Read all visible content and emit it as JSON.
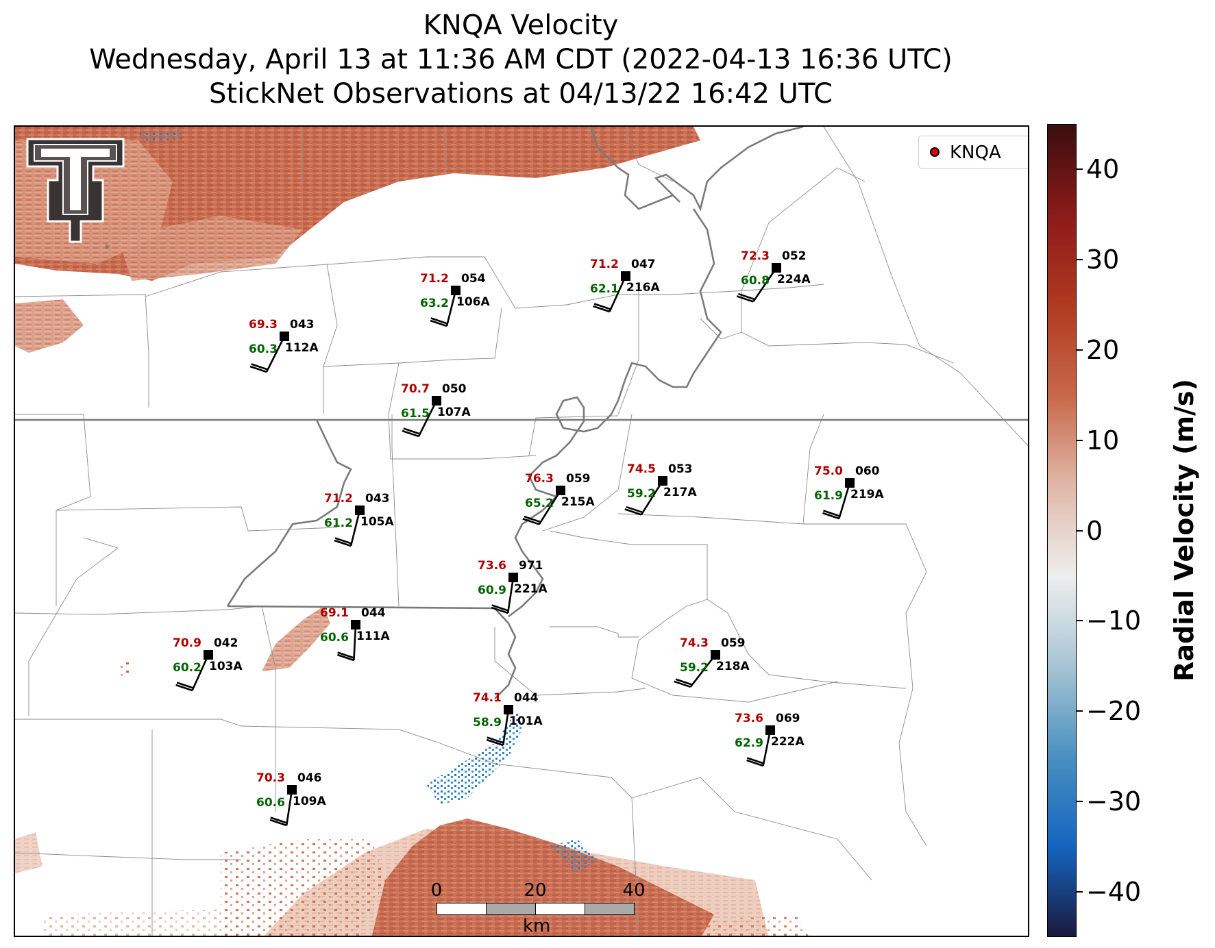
{
  "title": {
    "line1": "KNQA Velocity",
    "line2": "Wednesday, April 13 at 11:36 AM CDT (2022-04-13 16:36 UTC)",
    "line3": "StickNet Observations at 04/13/22 16:42 UTC"
  },
  "legend": {
    "label": "KNQA",
    "marker_color": "#e00000"
  },
  "colorbar": {
    "title": "Radial Velocity (m/s)",
    "ticks": [
      "40",
      "30",
      "20",
      "10",
      "0",
      "−10",
      "−20",
      "−30",
      "−40"
    ],
    "tick_values": [
      40,
      30,
      20,
      10,
      0,
      -10,
      -20,
      -30,
      -40
    ],
    "range": [
      -45,
      45
    ],
    "colors": [
      "#1a1a3e",
      "#1565c0",
      "#4a90c0",
      "#a8c4d4",
      "#eeeeee",
      "#e0b8a8",
      "#c86848",
      "#b03a20",
      "#8b1a1a",
      "#3a0f0f"
    ]
  },
  "scalebar": {
    "ticks": [
      "0",
      "20",
      "40"
    ],
    "unit": "km"
  },
  "logo_icon": "texas-tech-double-t-logo",
  "colors": {
    "temperature": "#b00000",
    "dewpoint": "#006400",
    "station_marker": "#000000"
  },
  "stations": [
    {
      "id": "043",
      "probe": "112A",
      "temp": "69.3",
      "dew": "60.3"
    },
    {
      "id": "054",
      "probe": "106A",
      "temp": "71.2",
      "dew": "63.2"
    },
    {
      "id": "047",
      "probe": "216A",
      "temp": "71.2",
      "dew": "62.1"
    },
    {
      "id": "052",
      "probe": "224A",
      "temp": "72.3",
      "dew": "60.8"
    },
    {
      "id": "050",
      "probe": "107A",
      "temp": "70.7",
      "dew": "61.5"
    },
    {
      "id": "059",
      "probe": "215A",
      "temp": "76.3",
      "dew": "65.2"
    },
    {
      "id": "053",
      "probe": "217A",
      "temp": "74.5",
      "dew": "59.2"
    },
    {
      "id": "060",
      "probe": "219A",
      "temp": "75.0",
      "dew": "61.9"
    },
    {
      "id": "043",
      "probe": "105A",
      "temp": "71.2",
      "dew": "61.2"
    },
    {
      "id": "971",
      "probe": "221A",
      "temp": "73.6",
      "dew": "60.9"
    },
    {
      "id": "044",
      "probe": "111A",
      "temp": "69.1",
      "dew": "60.6"
    },
    {
      "id": "042",
      "probe": "103A",
      "temp": "70.9",
      "dew": "60.2"
    },
    {
      "id": "059",
      "probe": "218A",
      "temp": "74.3",
      "dew": "59.2"
    },
    {
      "id": "044",
      "probe": "101A",
      "temp": "74.1",
      "dew": "58.9"
    },
    {
      "id": "069",
      "probe": "222A",
      "temp": "73.6",
      "dew": "62.9"
    },
    {
      "id": "046",
      "probe": "109A",
      "temp": "70.3",
      "dew": "60.6"
    }
  ]
}
